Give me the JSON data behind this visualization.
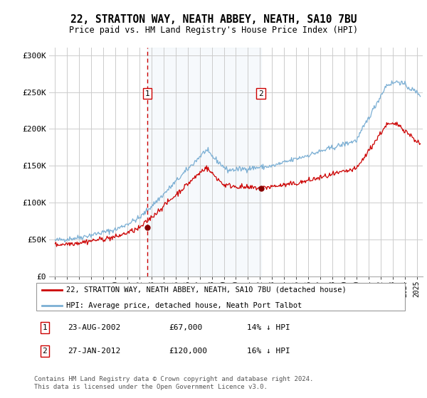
{
  "title": "22, STRATTON WAY, NEATH ABBEY, NEATH, SA10 7BU",
  "subtitle": "Price paid vs. HM Land Registry's House Price Index (HPI)",
  "ylabel_ticks": [
    "£0",
    "£50K",
    "£100K",
    "£150K",
    "£200K",
    "£250K",
    "£300K"
  ],
  "ytick_vals": [
    0,
    50000,
    100000,
    150000,
    200000,
    250000,
    300000
  ],
  "ylim": [
    0,
    310000
  ],
  "xlim_start": 1994.5,
  "xlim_end": 2025.5,
  "hpi_color": "#7bafd4",
  "price_color": "#cc0000",
  "shade_color": "#dce9f5",
  "vline1_x": 2002.64,
  "vline2_x": 2012.07,
  "marker1_x": 2002.64,
  "marker1_y": 67000,
  "marker2_x": 2012.07,
  "marker2_y": 120000,
  "legend_label_red": "22, STRATTON WAY, NEATH ABBEY, NEATH, SA10 7BU (detached house)",
  "legend_label_blue": "HPI: Average price, detached house, Neath Port Talbot",
  "table_rows": [
    {
      "num": "1",
      "date": "23-AUG-2002",
      "price": "£67,000",
      "pct": "14% ↓ HPI"
    },
    {
      "num": "2",
      "date": "27-JAN-2012",
      "price": "£120,000",
      "pct": "16% ↓ HPI"
    }
  ],
  "footer": "Contains HM Land Registry data © Crown copyright and database right 2024.\nThis data is licensed under the Open Government Licence v3.0.",
  "box_color": "#cc0000"
}
